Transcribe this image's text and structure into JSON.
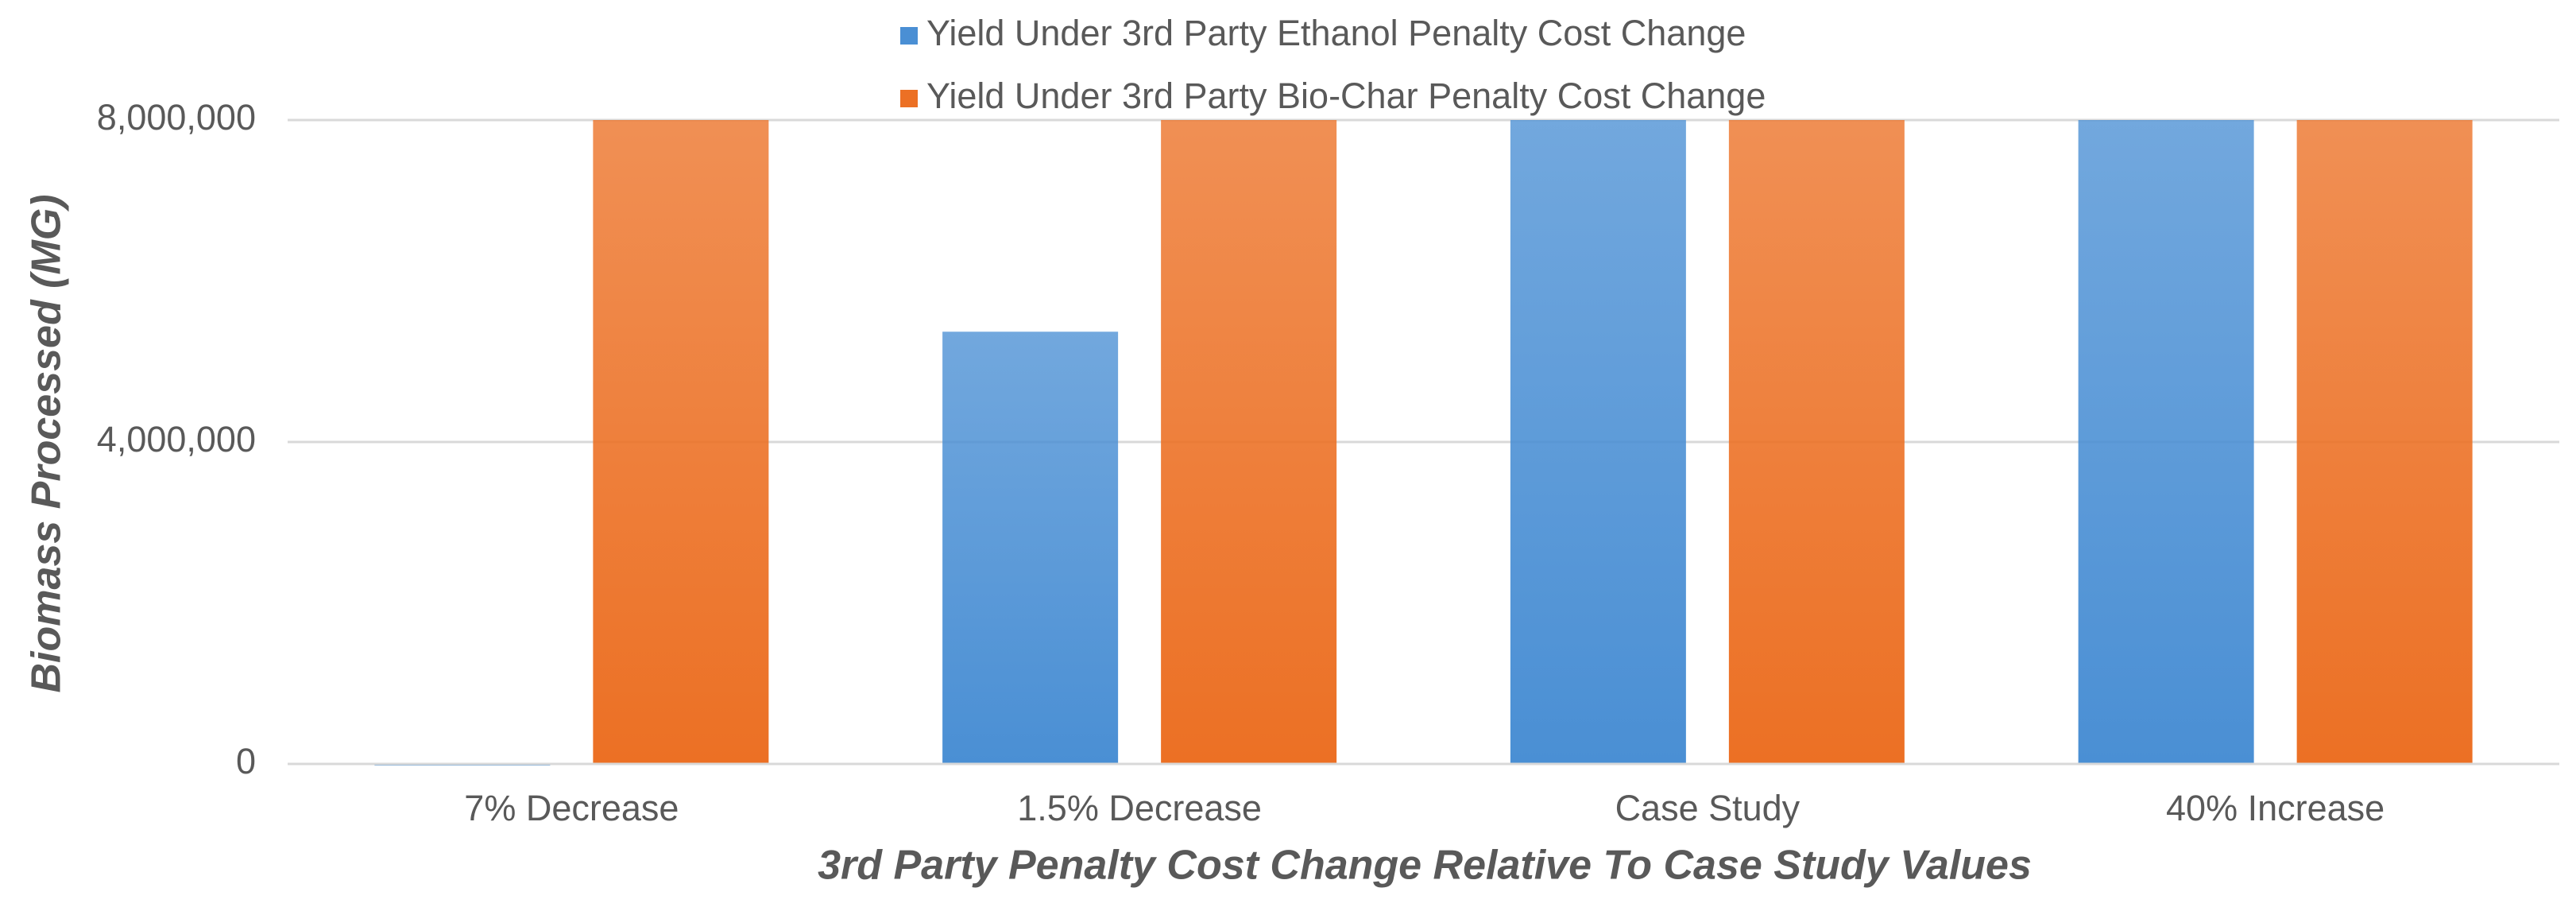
{
  "chart_data": {
    "type": "bar",
    "x_label": "3rd Party Penalty Cost Change Relative To Case Study Values",
    "y_label": "Biomass Processed (MG)",
    "categories": [
      "7% Decrease",
      "1.5% Decrease",
      "Case Study",
      "40% Increase"
    ],
    "series": [
      {
        "name": "Yield Under 3rd Party Ethanol Penalty Cost Change",
        "color": "#4a8fd4",
        "values": [
          0,
          5370000,
          8000000,
          8000000
        ]
      },
      {
        "name": "Yield Under 3rd Party Bio-Char Penalty Cost Change",
        "color": "#ec7024",
        "values": [
          8000000,
          8000000,
          8000000,
          8000000
        ]
      }
    ],
    "ylim": [
      0,
      8000000
    ],
    "yticks": [
      0,
      {
        "value": 4000000,
        "label": "4,000,000"
      },
      {
        "value": 8000000,
        "label": "8,000,000"
      }
    ],
    "grid": true,
    "legend": "top"
  }
}
